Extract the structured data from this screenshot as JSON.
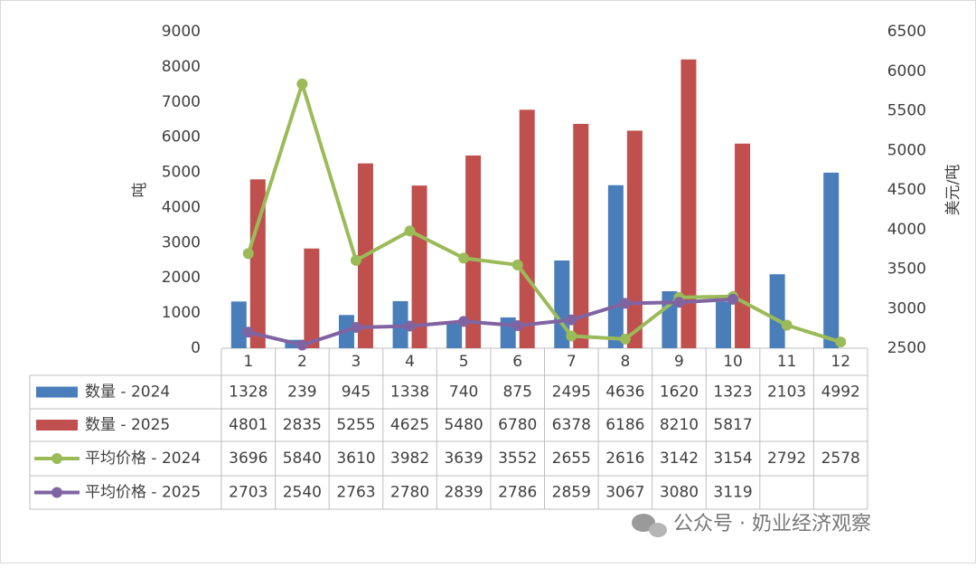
{
  "chart_data": {
    "type": "bar_line_table",
    "categories": [
      "1",
      "2",
      "3",
      "4",
      "5",
      "6",
      "7",
      "8",
      "9",
      "10",
      "11",
      "12"
    ],
    "series": [
      {
        "name": "数量 - 2024",
        "type": "bar",
        "color": "#4a7ebb",
        "values": [
          1328,
          239,
          945,
          1338,
          740,
          875,
          2495,
          4636,
          1620,
          1323,
          2103,
          4992
        ]
      },
      {
        "name": "数量 - 2025",
        "type": "bar",
        "color": "#c0504d",
        "values": [
          4801,
          2835,
          5255,
          4625,
          5480,
          6780,
          6378,
          6186,
          8210,
          5817,
          null,
          null
        ]
      },
      {
        "name": "平均价格 - 2024",
        "type": "line",
        "axis": "y2",
        "color": "#9bbb59",
        "values": [
          3696,
          5840,
          3610,
          3982,
          3639,
          3552,
          2655,
          2616,
          3142,
          3154,
          2792,
          2578
        ]
      },
      {
        "name": "平均价格 - 2025",
        "type": "line",
        "axis": "y2",
        "color": "#8064a2",
        "values": [
          2703,
          2540,
          2763,
          2780,
          2839,
          2786,
          2859,
          3067,
          3080,
          3119,
          null,
          null
        ]
      }
    ],
    "y_label": "吨",
    "y2_label": "美元/吨",
    "ylim": [
      0,
      9000
    ],
    "yticks": [
      0,
      1000,
      2000,
      3000,
      4000,
      5000,
      6000,
      7000,
      8000,
      9000
    ],
    "y2lim": [
      2500,
      6500
    ],
    "y2ticks": [
      2500,
      3000,
      3500,
      4000,
      4500,
      5000,
      5500,
      6000,
      6500
    ],
    "data_table": true
  },
  "watermark": "公众号 · 奶业经济观察"
}
